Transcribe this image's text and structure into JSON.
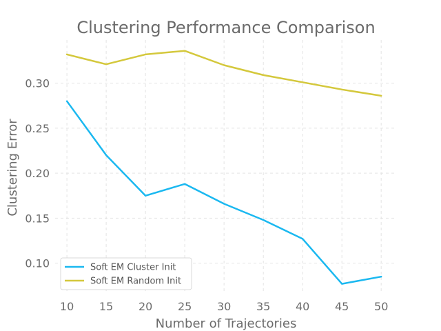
{
  "chart_data": {
    "type": "line",
    "title": "Clustering Performance Comparison",
    "xlabel": "Number of Trajectories",
    "ylabel": "Clustering Error",
    "x": [
      10,
      15,
      20,
      25,
      30,
      35,
      40,
      45,
      50
    ],
    "xlim": [
      8.5,
      52
    ],
    "ylim": [
      0.066,
      0.348
    ],
    "x_ticks": [
      10,
      15,
      20,
      25,
      30,
      35,
      40,
      45,
      50
    ],
    "y_ticks": [
      0.1,
      0.15,
      0.2,
      0.25,
      0.3
    ],
    "y_tick_labels": [
      "0.10",
      "0.15",
      "0.20",
      "0.25",
      "0.30"
    ],
    "grid": true,
    "legend_position": "bottom-left",
    "series": [
      {
        "name": "Soft EM Cluster Init",
        "color": "#1ab8f0",
        "values": [
          0.28,
          0.22,
          0.175,
          0.188,
          0.166,
          0.148,
          0.127,
          0.077,
          0.085
        ]
      },
      {
        "name": "Soft EM Random Init",
        "color": "#d4c83c",
        "values": [
          0.332,
          0.321,
          0.332,
          0.336,
          0.32,
          0.309,
          0.301,
          0.293,
          0.286
        ]
      }
    ]
  }
}
